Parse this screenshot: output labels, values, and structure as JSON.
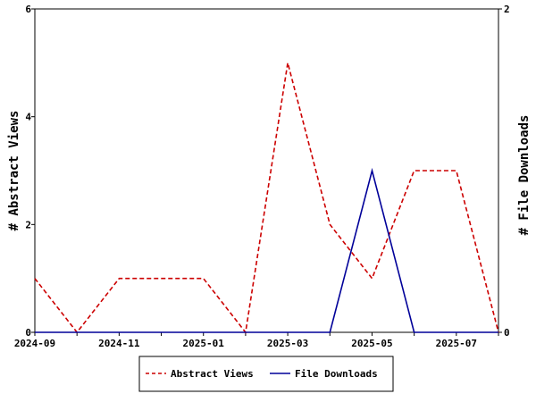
{
  "chart_data": {
    "type": "line",
    "x": [
      "2024-09",
      "2024-10",
      "2024-11",
      "2024-12",
      "2025-01",
      "2025-02",
      "2025-03",
      "2025-04",
      "2025-05",
      "2025-06",
      "2025-07",
      "2025-08"
    ],
    "x_tick_labels": [
      "2024-09",
      "2024-11",
      "2025-01",
      "2025-03",
      "2025-05",
      "2025-07"
    ],
    "series": [
      {
        "name": "Abstract Views",
        "axis": "left",
        "color": "#cc0000",
        "style": "dashed",
        "values": [
          1,
          0,
          1,
          1,
          1,
          0,
          5,
          2,
          1,
          3,
          3,
          0
        ]
      },
      {
        "name": "File Downloads",
        "axis": "right",
        "color": "#000099",
        "style": "solid",
        "values": [
          0,
          0,
          0,
          0,
          0,
          0,
          0,
          0,
          1,
          0,
          0,
          0
        ]
      }
    ],
    "ylabel": "# Abstract Views",
    "y2label": "# File Downloads",
    "ylim": [
      0,
      6
    ],
    "y_ticks": [
      "0",
      "2",
      "4",
      "6"
    ],
    "y2lim": [
      0,
      2
    ],
    "y2_ticks": [
      "0",
      "2"
    ],
    "grid": false,
    "legend_position": "bottom"
  }
}
